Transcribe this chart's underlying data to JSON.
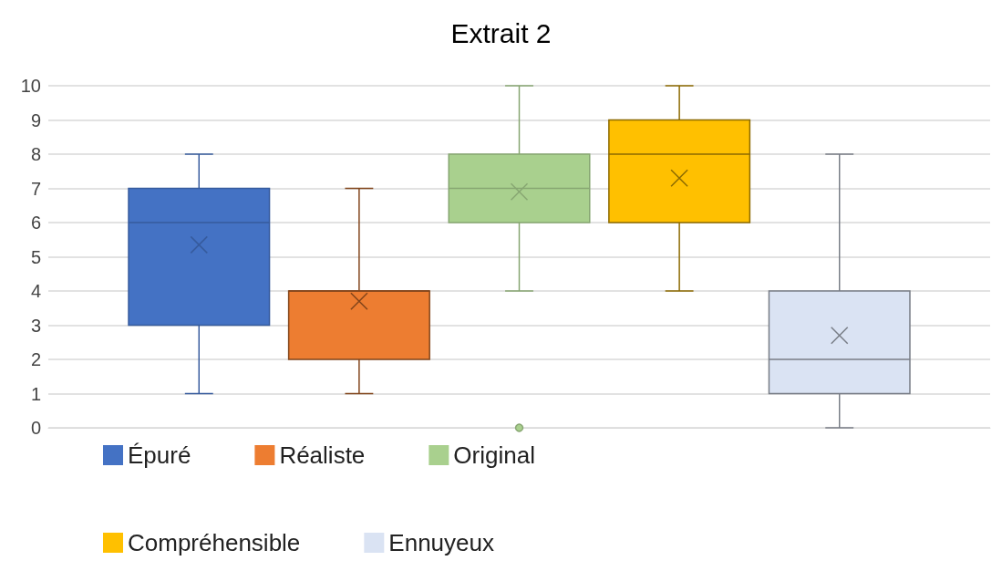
{
  "chart_data": {
    "type": "box",
    "title": "Extrait 2",
    "categories": [
      null
    ],
    "series": [
      {
        "name": "Épuré",
        "color": "#4472c4",
        "boxes": [
          {
            "low": 1,
            "q1": 3,
            "median": 6,
            "q3": 7,
            "high": 8,
            "mean": 5.35
          }
        ]
      },
      {
        "name": "Réaliste",
        "color": "#ed7d31",
        "boxes": [
          {
            "low": 1,
            "q1": 2,
            "median": 4,
            "q3": 4,
            "high": 7,
            "mean": 3.7
          }
        ]
      },
      {
        "name": "Original",
        "color": "#a9d08e",
        "boxes": [
          {
            "low": 4,
            "q1": 6,
            "median": 7,
            "q3": 8,
            "high": 10,
            "mean": 6.9,
            "outliers": [
              0
            ]
          }
        ]
      },
      {
        "name": "Compréhensible",
        "color": "#ffc000",
        "boxes": [
          {
            "low": 4,
            "q1": 6,
            "median": 8,
            "q3": 9,
            "high": 10,
            "mean": 7.3
          }
        ]
      },
      {
        "name": "Ennuyeux",
        "color": "#dae3f3",
        "boxes": [
          {
            "low": 0,
            "q1": 1,
            "median": 2,
            "q3": 4,
            "high": 8,
            "mean": 2.7
          }
        ]
      }
    ],
    "ylim": [
      0,
      10
    ],
    "yticks": [
      0,
      1,
      2,
      3,
      4,
      5,
      6,
      7,
      8,
      9,
      10
    ],
    "grid": "y",
    "legend": "bottom"
  }
}
